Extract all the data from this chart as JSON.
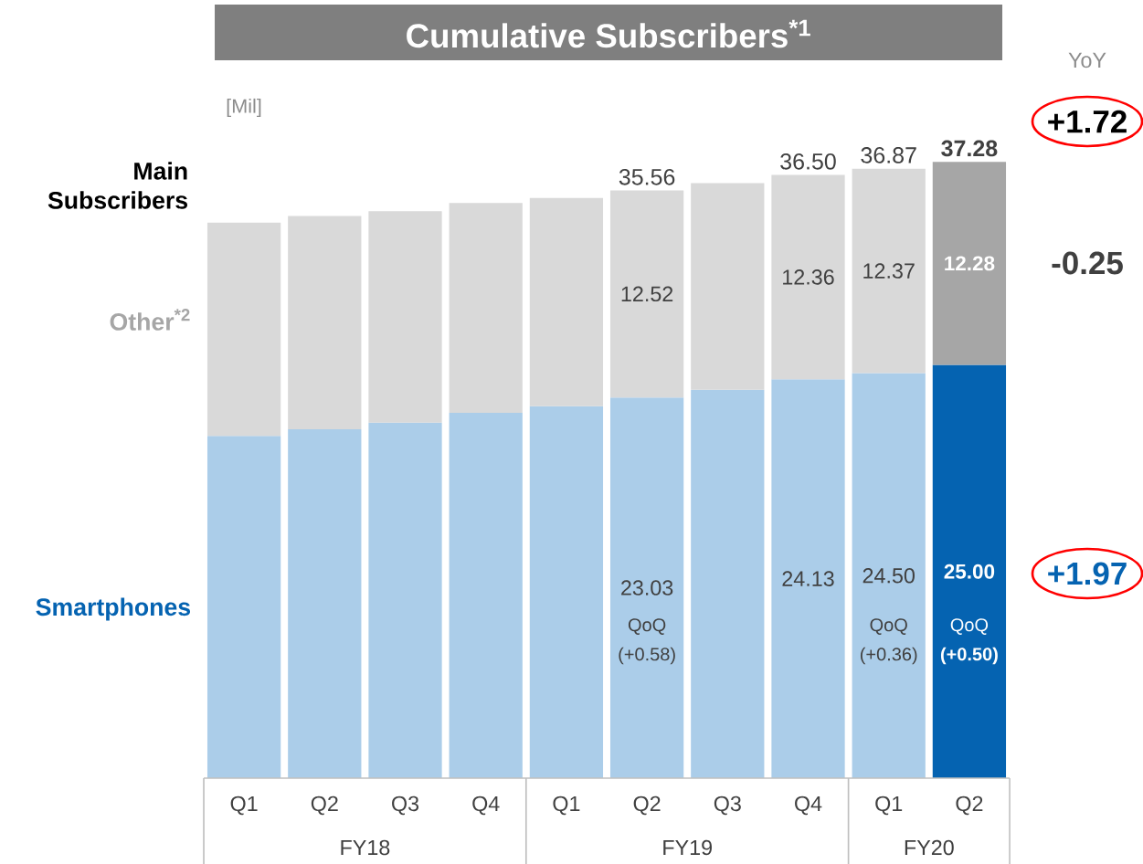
{
  "chart_data": {
    "type": "bar",
    "title": "Cumulative Subscribers$^{*1}$",
    "stacked": true,
    "categories": [
      "Q1",
      "Q2",
      "Q3",
      "Q4",
      "Q1",
      "Q2",
      "Q3",
      "Q4",
      "Q1",
      "Q2"
    ],
    "series": [
      {
        "name": "Smartphones",
        "colors": [
          "#abcde9",
          "#abcde9",
          "#abcde9",
          "#abcde9",
          "#abcde9",
          "#abcde9",
          "#abcde9",
          "#abcde9",
          "#abcde9",
          "#0563b1"
        ],
        "values": [
          20.7,
          21.1,
          21.5,
          22.1,
          22.5,
          23.03,
          23.5,
          24.13,
          24.5,
          25.0
        ],
        "value_labels": [
          null,
          null,
          null,
          null,
          null,
          "23.03",
          null,
          "24.13",
          "24.50",
          "25.00"
        ]
      },
      {
        "name": "Other$^{*2}$",
        "colors": [
          "#d9d9d9",
          "#d9d9d9",
          "#d9d9d9",
          "#d9d9d9",
          "#d9d9d9",
          "#d9d9d9",
          "#d9d9d9",
          "#d9d9d9",
          "#d9d9d9",
          "#a6a6a6"
        ],
        "values": [
          12.9,
          12.9,
          12.8,
          12.7,
          12.6,
          12.52,
          12.5,
          12.36,
          12.37,
          12.28
        ],
        "value_labels": [
          null,
          null,
          null,
          null,
          null,
          "12.52",
          null,
          "12.36",
          "12.37",
          "12.28"
        ]
      }
    ],
    "totals": [
      null,
      null,
      null,
      null,
      null,
      "35.56",
      null,
      "36.50",
      "36.87",
      "37.28"
    ],
    "annotations": [
      "Main Subscribers",
      "YoY",
      "+1.72",
      "-0.25",
      "+1.97",
      "QoQ",
      "(+0.58)",
      "QoQ",
      "(+0.36)",
      "QoQ",
      "(+0.50)",
      "FY18",
      "FY19",
      "FY20",
      "[Mil]"
    ]
  }
}
